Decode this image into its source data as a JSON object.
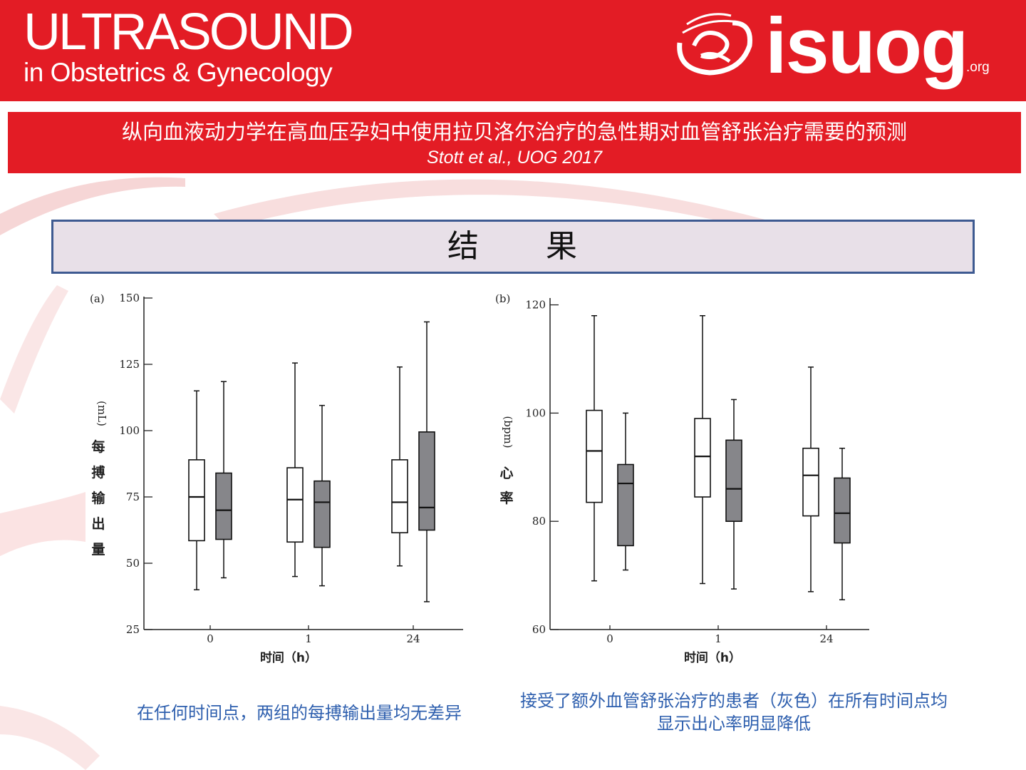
{
  "header": {
    "title": "ULTRASOUND",
    "subtitle": "in Obstetrics & Gynecology",
    "logo_text": "isuog",
    "logo_suffix": ".org",
    "brand_color": "#e31c25"
  },
  "reference": {
    "title": "纵向血液动力学在高血压孕妇中使用拉贝洛尔治疗的急性期对血管舒张治疗需要的预测",
    "citation": "Stott et al., UOG 2017"
  },
  "section": {
    "title": "结　　果"
  },
  "chart_data": [
    {
      "type": "box",
      "panel_label": "(a)",
      "ylabel": "每搏输出量（mL）",
      "ylabel_chars": [
        "每",
        "搏",
        "输",
        "出",
        "量"
      ],
      "ylabel_unit": "(mL)",
      "xlabel": "时间（h）",
      "ylim": [
        25,
        150
      ],
      "yticks": [
        25,
        50,
        75,
        100,
        125,
        150
      ],
      "categories": [
        "0",
        "1",
        "24"
      ],
      "series": [
        {
          "color": "#ffffff",
          "boxes": [
            {
              "whisker_low": 40,
              "q1": 58.5,
              "median": 75,
              "q3": 89,
              "whisker_high": 115
            },
            {
              "whisker_low": 45,
              "q1": 58,
              "median": 74,
              "q3": 86,
              "whisker_high": 125.5
            },
            {
              "whisker_low": 49,
              "q1": 61.5,
              "median": 73,
              "q3": 89,
              "whisker_high": 124
            }
          ]
        },
        {
          "color": "#86868a",
          "boxes": [
            {
              "whisker_low": 44.5,
              "q1": 59,
              "median": 70,
              "q3": 84,
              "whisker_high": 118.5
            },
            {
              "whisker_low": 41.5,
              "q1": 56,
              "median": 73,
              "q3": 81,
              "whisker_high": 109.5
            },
            {
              "whisker_low": 35.5,
              "q1": 62.5,
              "median": 71,
              "q3": 99.5,
              "whisker_high": 141
            }
          ]
        }
      ]
    },
    {
      "type": "box",
      "panel_label": "(b)",
      "ylabel": "心率（bpm）",
      "ylabel_chars": [
        "心",
        "率"
      ],
      "ylabel_unit": "(bpm)",
      "xlabel": "时间（h）",
      "ylim": [
        60,
        121
      ],
      "yticks": [
        60,
        80,
        100,
        120
      ],
      "categories": [
        "0",
        "1",
        "24"
      ],
      "series": [
        {
          "color": "#ffffff",
          "boxes": [
            {
              "whisker_low": 69,
              "q1": 83.5,
              "median": 93,
              "q3": 100.5,
              "whisker_high": 118
            },
            {
              "whisker_low": 68.5,
              "q1": 84.5,
              "median": 92,
              "q3": 99,
              "whisker_high": 118
            },
            {
              "whisker_low": 67,
              "q1": 81,
              "median": 88.5,
              "q3": 93.5,
              "whisker_high": 108.5
            }
          ]
        },
        {
          "color": "#86868a",
          "boxes": [
            {
              "whisker_low": 71,
              "q1": 75.5,
              "median": 87,
              "q3": 90.5,
              "whisker_high": 100
            },
            {
              "whisker_low": 67.5,
              "q1": 80,
              "median": 86,
              "q3": 95,
              "whisker_high": 102.5
            },
            {
              "whisker_low": 65.5,
              "q1": 76,
              "median": 81.5,
              "q3": 88,
              "whisker_high": 93.5
            }
          ]
        }
      ]
    }
  ],
  "captions": {
    "left": "在任何时间点，两组的每搏输出量均无差异",
    "right": "接受了额外血管舒张治疗的患者（灰色）在所有时间点均显示出心率明显降低"
  }
}
